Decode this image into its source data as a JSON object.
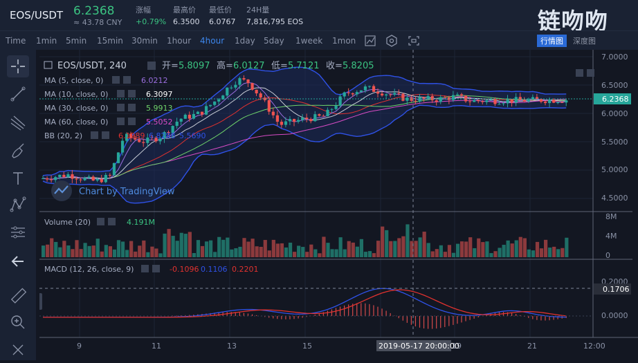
{
  "header": {
    "symbol": "EOS/USDT",
    "price": "6.2368",
    "cny": "≈ 43.78 CNY",
    "stats": [
      {
        "label": "涨幅",
        "value": "+0.79%"
      },
      {
        "label": "最高价",
        "value": "6.3500"
      },
      {
        "label": "最低价",
        "value": "6.0767"
      },
      {
        "label": "24H量",
        "value": "7,816,795 EOS"
      }
    ],
    "brand_text": "链吻吻",
    "brand_buttons": [
      "行情图",
      "深度图"
    ]
  },
  "intervals": [
    "Time",
    "1min",
    "5min",
    "15min",
    "30min",
    "1hour",
    "4hour",
    "1day",
    "5day",
    "1week",
    "1mon"
  ],
  "active_interval": "4hour",
  "legend": {
    "title": "EOS/USDT, 240",
    "open_label": "开=",
    "open": "5.8097",
    "high_label": "高=",
    "high": "6.0127",
    "low_label": "低=",
    "low": "5.7121",
    "close_label": "收=",
    "close": "5.8205",
    "ma": [
      {
        "label": "MA (5, close, 0)",
        "value": "6.0212",
        "color": "#9b6fe0"
      },
      {
        "label": "MA (10, close, 0)",
        "value": "6.3097",
        "color": "#ffffff"
      },
      {
        "label": "MA (30, close, 0)",
        "value": "5.9913",
        "color": "#6fd36a"
      },
      {
        "label": "MA (60, close, 0)",
        "value": "5.5052",
        "color": "#d94cc6"
      }
    ],
    "bb": {
      "label": "BB (20, 2)",
      "values": [
        "6.1989",
        "6.8288",
        "5.5690"
      ],
      "colors": [
        "#e2322f",
        "#2f52e8",
        "#2f52e8"
      ]
    },
    "watermark": "Chart by TradingView"
  },
  "volume": {
    "label": "Volume (20)",
    "value": "4.191M"
  },
  "macd": {
    "label": "MACD (12, 26, close, 9)",
    "values": [
      "-0.1096",
      "0.1106",
      "0.2201"
    ]
  },
  "axis": {
    "price_ticks": [
      "7.0000",
      "6.5000",
      "6.0000",
      "5.5000",
      "5.0000",
      "4.5000"
    ],
    "price_tag": "6.2368",
    "vol_ticks": [
      "8M",
      "4M",
      "0"
    ],
    "macd_ticks": [
      "0.2000",
      "0.0000"
    ],
    "macd_tag": "0.1706",
    "time_ticks": [
      "9",
      "11",
      "13",
      "15",
      "17",
      "19",
      "21",
      "12:00"
    ],
    "crosshair_time": "2019-05-17 20:00:00"
  },
  "colors": {
    "up": "#26a69a",
    "down": "#ef5350",
    "bg": "#131722",
    "accent": "#3d86ec"
  },
  "left_tools": [
    "crosshair-icon",
    "trendline-icon",
    "pitchfork-icon",
    "brush-icon",
    "text-icon",
    "pattern-icon",
    "measure-icon",
    "back-arrow-icon",
    "ruler-icon",
    "zoom-icon",
    "close-icon"
  ]
}
